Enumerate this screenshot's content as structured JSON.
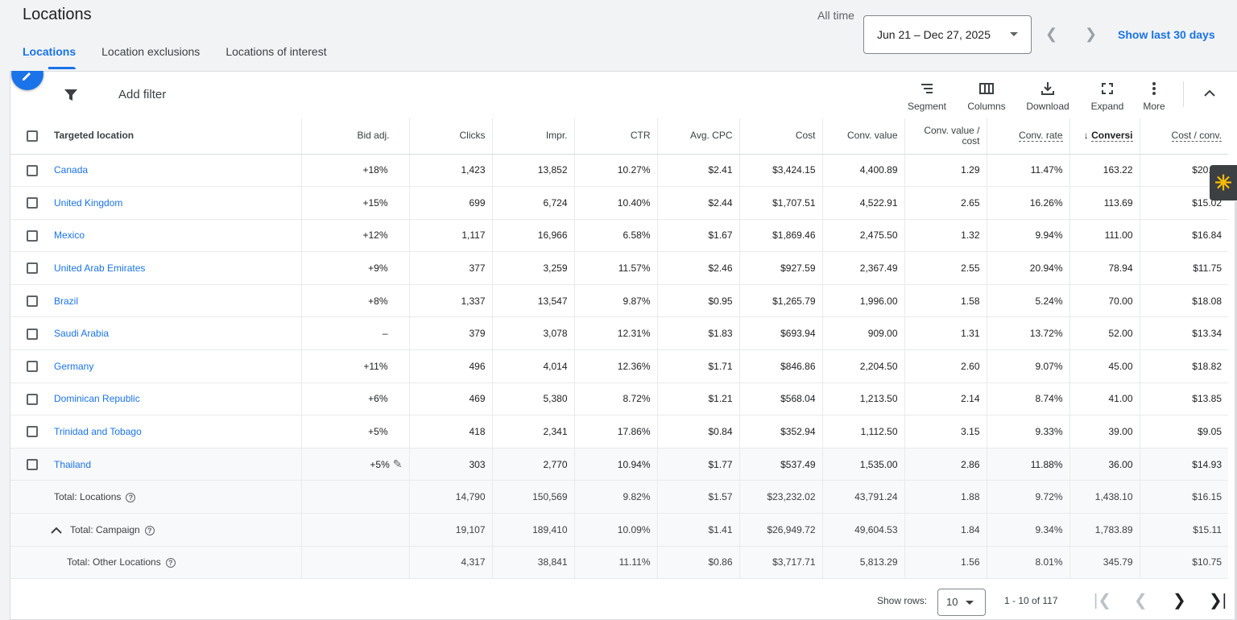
{
  "page_title": "Locations",
  "tabs": [
    {
      "label": "Locations",
      "active": true
    },
    {
      "label": "Location exclusions",
      "active": false
    },
    {
      "label": "Locations of interest",
      "active": false
    }
  ],
  "date": {
    "range_label": "All time",
    "range_value": "Jun 21 – Dec 27, 2025",
    "show_last": "Show last 30 days"
  },
  "toolbar": {
    "add_filter": "Add filter",
    "segment": "Segment",
    "columns": "Columns",
    "download": "Download",
    "expand": "Expand",
    "more": "More"
  },
  "table": {
    "headers": {
      "location": "Targeted location",
      "bid": "Bid adj.",
      "clicks": "Clicks",
      "impr": "Impr.",
      "ctr": "CTR",
      "cpc": "Avg. CPC",
      "cost": "Cost",
      "conv_value": "Conv. value",
      "value_cost": "Conv. value / cost",
      "conv_rate": "Conv. rate",
      "conversions": "Conversi",
      "cost_conv": "Cost / conv."
    },
    "rows": [
      {
        "location": "Canada",
        "bid": "+18%",
        "clicks": "1,423",
        "impr": "13,852",
        "ctr": "10.27%",
        "cpc": "$2.41",
        "cost": "$3,424.15",
        "conv_value": "4,400.89",
        "value_cost": "1.29",
        "conv_rate": "11.47%",
        "conversions": "163.22",
        "cost_conv": "$20.98"
      },
      {
        "location": "United Kingdom",
        "bid": "+15%",
        "clicks": "699",
        "impr": "6,724",
        "ctr": "10.40%",
        "cpc": "$2.44",
        "cost": "$1,707.51",
        "conv_value": "4,522.91",
        "value_cost": "2.65",
        "conv_rate": "16.26%",
        "conversions": "113.69",
        "cost_conv": "$15.02"
      },
      {
        "location": "Mexico",
        "bid": "+12%",
        "clicks": "1,117",
        "impr": "16,966",
        "ctr": "6.58%",
        "cpc": "$1.67",
        "cost": "$1,869.46",
        "conv_value": "2,475.50",
        "value_cost": "1.32",
        "conv_rate": "9.94%",
        "conversions": "111.00",
        "cost_conv": "$16.84"
      },
      {
        "location": "United Arab Emirates",
        "bid": "+9%",
        "clicks": "377",
        "impr": "3,259",
        "ctr": "11.57%",
        "cpc": "$2.46",
        "cost": "$927.59",
        "conv_value": "2,367.49",
        "value_cost": "2.55",
        "conv_rate": "20.94%",
        "conversions": "78.94",
        "cost_conv": "$11.75"
      },
      {
        "location": "Brazil",
        "bid": "+8%",
        "clicks": "1,337",
        "impr": "13,547",
        "ctr": "9.87%",
        "cpc": "$0.95",
        "cost": "$1,265.79",
        "conv_value": "1,996.00",
        "value_cost": "1.58",
        "conv_rate": "5.24%",
        "conversions": "70.00",
        "cost_conv": "$18.08"
      },
      {
        "location": "Saudi Arabia",
        "bid": "–",
        "clicks": "379",
        "impr": "3,078",
        "ctr": "12.31%",
        "cpc": "$1.83",
        "cost": "$693.94",
        "conv_value": "909.00",
        "value_cost": "1.31",
        "conv_rate": "13.72%",
        "conversions": "52.00",
        "cost_conv": "$13.34"
      },
      {
        "location": "Germany",
        "bid": "+11%",
        "clicks": "496",
        "impr": "4,014",
        "ctr": "12.36%",
        "cpc": "$1.71",
        "cost": "$846.86",
        "conv_value": "2,204.50",
        "value_cost": "2.60",
        "conv_rate": "9.07%",
        "conversions": "45.00",
        "cost_conv": "$18.82"
      },
      {
        "location": "Dominican Republic",
        "bid": "+6%",
        "clicks": "469",
        "impr": "5,380",
        "ctr": "8.72%",
        "cpc": "$1.21",
        "cost": "$568.04",
        "conv_value": "1,213.50",
        "value_cost": "2.14",
        "conv_rate": "8.74%",
        "conversions": "41.00",
        "cost_conv": "$13.85"
      },
      {
        "location": "Trinidad and Tobago",
        "bid": "+5%",
        "clicks": "418",
        "impr": "2,341",
        "ctr": "17.86%",
        "cpc": "$0.84",
        "cost": "$352.94",
        "conv_value": "1,112.50",
        "value_cost": "3.15",
        "conv_rate": "9.33%",
        "conversions": "39.00",
        "cost_conv": "$9.05"
      },
      {
        "location": "Thailand",
        "bid": "+5%",
        "clicks": "303",
        "impr": "2,770",
        "ctr": "10.94%",
        "cpc": "$1.77",
        "cost": "$537.49",
        "conv_value": "1,535.00",
        "value_cost": "2.86",
        "conv_rate": "11.88%",
        "conversions": "36.00",
        "cost_conv": "$14.93"
      }
    ],
    "totals": [
      {
        "label": "Total: Locations",
        "clicks": "14,790",
        "impr": "150,569",
        "ctr": "9.82%",
        "cpc": "$1.57",
        "cost": "$23,232.02",
        "conv_value": "43,791.24",
        "value_cost": "1.88",
        "conv_rate": "9.72%",
        "conversions": "1,438.10",
        "cost_conv": "$16.15"
      },
      {
        "label": "Total: Campaign",
        "clicks": "19,107",
        "impr": "189,410",
        "ctr": "10.09%",
        "cpc": "$1.41",
        "cost": "$26,949.72",
        "conv_value": "49,604.53",
        "value_cost": "1.84",
        "conv_rate": "9.34%",
        "conversions": "1,783.89",
        "cost_conv": "$15.11"
      },
      {
        "label": "Total: Other Locations",
        "clicks": "4,317",
        "impr": "38,841",
        "ctr": "11.11%",
        "cpc": "$0.86",
        "cost": "$3,717.71",
        "conv_value": "5,813.29",
        "value_cost": "1.56",
        "conv_rate": "8.01%",
        "conversions": "345.79",
        "cost_conv": "$10.75"
      }
    ]
  },
  "pagination": {
    "show_rows_label": "Show rows:",
    "rows_value": "10",
    "range": "1 - 10 of 117"
  }
}
